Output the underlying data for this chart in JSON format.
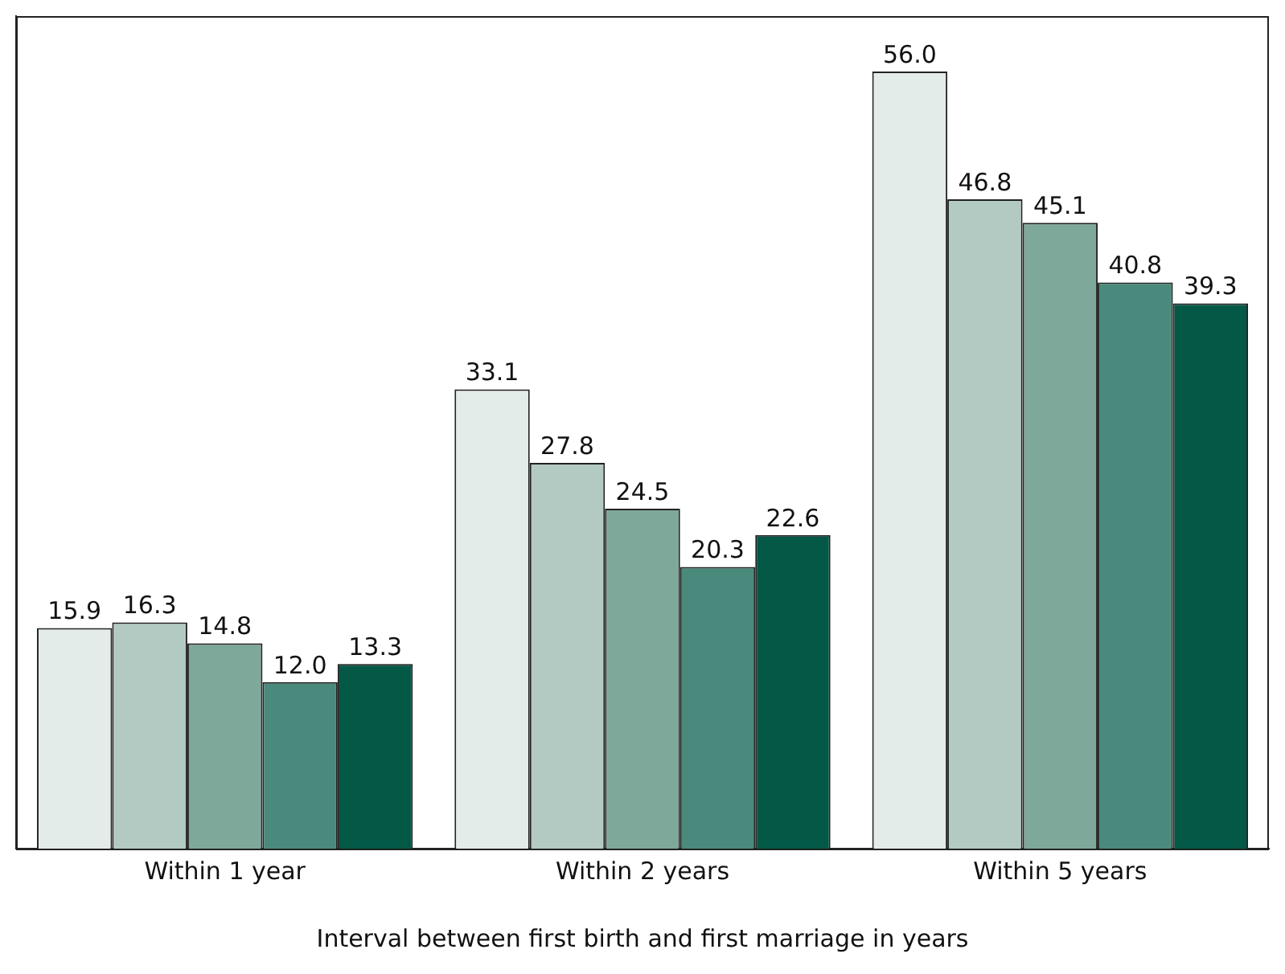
{
  "chart_data": {
    "type": "bar",
    "xlabel": "Interval between first birth and first marriage in years",
    "categories": [
      "Within 1 year",
      "Within 2 years",
      "Within 5 years"
    ],
    "series": [
      {
        "color": "#e3ece8",
        "values": [
          15.9,
          33.1,
          56.0
        ],
        "value_labels": [
          "15.9",
          "33.1",
          "56.0"
        ]
      },
      {
        "color": "#b3cac2",
        "values": [
          16.3,
          27.8,
          46.8
        ],
        "value_labels": [
          "16.3",
          "27.8",
          "46.8"
        ]
      },
      {
        "color": "#7ea89a",
        "values": [
          14.8,
          24.5,
          45.1
        ],
        "value_labels": [
          "14.8",
          "24.5",
          "45.1"
        ]
      },
      {
        "color": "#4a8a7c",
        "values": [
          12.0,
          20.3,
          40.8
        ],
        "value_labels": [
          "12.0",
          "20.3",
          "40.8"
        ]
      },
      {
        "color": "#035846",
        "values": [
          13.3,
          22.6,
          39.3
        ],
        "value_labels": [
          "13.3",
          "22.6",
          "39.3"
        ]
      }
    ],
    "ylim": [
      0,
      60
    ],
    "tick_labels": "x",
    "grid": false,
    "legend": false
  }
}
